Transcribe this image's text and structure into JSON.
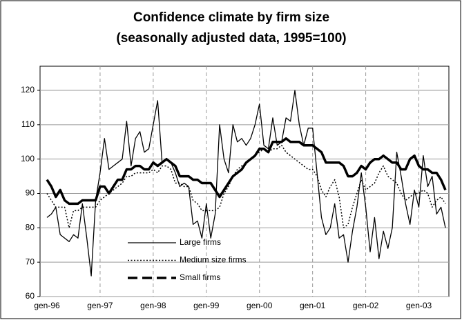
{
  "chart_data": {
    "type": "line",
    "title": "Confidence climate by firm size",
    "subtitle": "(seasonally adjusted data, 1995=100)",
    "categories": [
      "gen-96",
      null,
      null,
      null,
      null,
      null,
      null,
      null,
      null,
      null,
      null,
      null,
      "gen-97",
      null,
      null,
      null,
      null,
      null,
      null,
      null,
      null,
      null,
      null,
      null,
      "gen-98",
      null,
      null,
      null,
      null,
      null,
      null,
      null,
      null,
      null,
      null,
      null,
      "gen-99",
      null,
      null,
      null,
      null,
      null,
      null,
      null,
      null,
      null,
      null,
      null,
      "gen-00",
      null,
      null,
      null,
      null,
      null,
      null,
      null,
      null,
      null,
      null,
      null,
      "gen-01",
      null,
      null,
      null,
      null,
      null,
      null,
      null,
      null,
      null,
      null,
      null,
      "gen-02",
      null,
      null,
      null,
      null,
      null,
      null,
      null,
      null,
      null,
      null,
      null,
      "gen-03",
      null,
      null,
      null,
      null,
      null,
      null
    ],
    "series": [
      {
        "name": "Large firms",
        "color": "#000000",
        "style": "solid",
        "values": [
          83,
          84,
          86,
          78,
          77,
          76,
          78,
          77,
          87,
          77,
          66,
          88,
          96,
          106,
          97,
          98,
          99,
          100,
          111,
          98,
          106,
          108,
          102,
          103,
          110,
          117,
          99,
          100,
          99,
          96,
          92,
          93,
          92,
          81,
          82,
          77,
          87,
          77,
          84,
          110,
          100,
          96,
          110,
          105,
          106,
          104,
          106,
          110,
          116,
          104,
          103,
          112,
          104,
          105,
          112,
          111,
          120,
          110,
          104,
          109,
          109,
          96,
          83,
          78,
          80,
          87,
          77,
          78,
          70,
          79,
          86,
          96,
          86,
          73,
          83,
          71,
          79,
          74,
          80,
          102,
          95,
          87,
          81,
          91,
          86,
          101,
          92,
          95,
          84,
          86,
          80
        ]
      },
      {
        "name": "Medium size firms",
        "color": "#000000",
        "style": "dotted",
        "values": [
          90,
          88,
          86,
          86,
          86,
          80,
          85,
          85,
          86,
          86,
          86,
          86,
          88,
          89,
          90,
          91,
          92,
          93,
          95,
          95,
          96,
          96,
          96,
          96,
          97,
          96,
          98,
          98,
          97,
          93,
          93,
          92,
          92,
          88,
          87,
          85,
          85,
          85,
          85,
          86,
          90,
          92,
          95,
          97,
          98,
          99,
          100,
          101,
          102,
          103,
          102,
          103,
          103,
          104,
          102,
          101,
          100,
          99,
          98,
          97,
          97,
          95,
          91,
          89,
          92,
          94,
          89,
          80,
          81,
          86,
          90,
          94,
          91,
          92,
          93,
          96,
          98,
          95,
          94,
          93,
          90,
          88,
          89,
          90,
          90,
          91,
          90,
          86,
          88,
          89,
          87
        ]
      },
      {
        "name": "Small firms",
        "color": "#000000",
        "style": "thick",
        "values": [
          94,
          92,
          89,
          91,
          88,
          87,
          87,
          87,
          88,
          88,
          88,
          88,
          92,
          92,
          90,
          92,
          94,
          94,
          97,
          97,
          98,
          98,
          97,
          97,
          99,
          98,
          99,
          100,
          99,
          98,
          95,
          95,
          95,
          94,
          94,
          93,
          93,
          93,
          91,
          89,
          91,
          93,
          95,
          96,
          97,
          99,
          100,
          101,
          103,
          103,
          102,
          105,
          105,
          105,
          106,
          105,
          105,
          105,
          104,
          104,
          104,
          103,
          102,
          99,
          99,
          99,
          99,
          98,
          95,
          95,
          96,
          98,
          97,
          99,
          100,
          100,
          101,
          100,
          99,
          99,
          97,
          97,
          100,
          101,
          98,
          97,
          97,
          96,
          96,
          94,
          91
        ]
      }
    ],
    "ylim": [
      60,
      120
    ],
    "yticks": [
      60,
      70,
      80,
      90,
      100,
      110,
      120
    ],
    "grid": true
  }
}
